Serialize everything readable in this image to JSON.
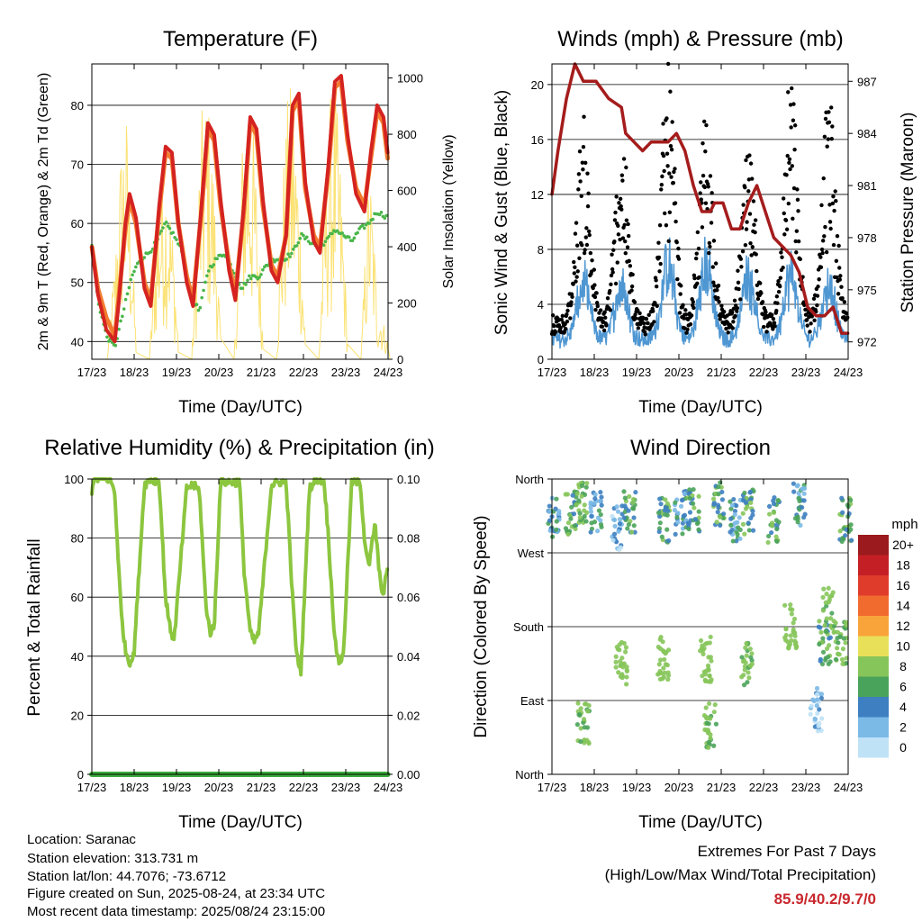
{
  "colors": {
    "temp_red": "#d42320",
    "temp_orange": "#f27c30",
    "dewpoint_green": "#4ab64a",
    "solar_yellow": "#fbe274",
    "wind_blue": "#4f97d2",
    "gust_black": "#000000",
    "pressure_maroon": "#a51c1c",
    "rh_green": "#8cc63f",
    "precip_green": "#3cab3c",
    "extremes_red": "#c8282d"
  },
  "chart_data": [
    {
      "id": "temperature",
      "type": "line",
      "title": "Temperature (F)",
      "xlabel": "Time (Day/UTC)",
      "ylabel": "2m & 9m T (Red, Orange) & 2m Td (Green)",
      "y2label": "Solar Insolation (Yellow)",
      "xlim": [
        17.958,
        24.958
      ],
      "ylim": [
        37,
        87
      ],
      "y2lim": [
        0,
        1050
      ],
      "yticks": [
        40,
        50,
        60,
        70,
        80
      ],
      "y2ticks": [
        0,
        200,
        400,
        600,
        800,
        1000
      ],
      "xtick_labels": [
        "17/23",
        "18/23",
        "19/23",
        "20/23",
        "21/23",
        "22/23",
        "23/23",
        "24/23"
      ],
      "grid": true,
      "series": [
        {
          "role": "temp_2m",
          "color_key": "temp_red",
          "x": [
            17.96,
            18.1,
            18.3,
            18.5,
            18.6,
            18.75,
            18.85,
            19.0,
            19.2,
            19.35,
            19.55,
            19.7,
            19.85,
            20.0,
            20.2,
            20.35,
            20.55,
            20.7,
            20.85,
            21.0,
            21.2,
            21.35,
            21.55,
            21.7,
            21.85,
            22.0,
            22.2,
            22.35,
            22.55,
            22.7,
            22.85,
            23.0,
            23.2,
            23.35,
            23.55,
            23.7,
            23.85,
            24.0,
            24.2,
            24.4,
            24.55,
            24.7,
            24.85,
            24.95
          ],
          "y": [
            56,
            48,
            42,
            40,
            47,
            60,
            65,
            61,
            49,
            46,
            63,
            73,
            72,
            60,
            50,
            46,
            63,
            77,
            75,
            64,
            52,
            47,
            63,
            78,
            76,
            64,
            52,
            50,
            58,
            80,
            82,
            67,
            57,
            55,
            70,
            84,
            85,
            75,
            65,
            62,
            72,
            80,
            78,
            72
          ]
        },
        {
          "role": "temp_9m",
          "color_key": "temp_orange",
          "x": [
            17.96,
            18.1,
            18.3,
            18.5,
            18.6,
            18.75,
            18.85,
            19.0,
            19.2,
            19.35,
            19.55,
            19.7,
            19.85,
            20.0,
            20.2,
            20.35,
            20.55,
            20.7,
            20.85,
            21.0,
            21.2,
            21.35,
            21.55,
            21.7,
            21.85,
            22.0,
            22.2,
            22.35,
            22.55,
            22.7,
            22.85,
            23.0,
            23.2,
            23.35,
            23.55,
            23.7,
            23.85,
            24.0,
            24.2,
            24.4,
            24.55,
            24.7,
            24.85,
            24.95
          ],
          "y": [
            56,
            49,
            44,
            41,
            48,
            59,
            64,
            60,
            50,
            47,
            62,
            72,
            71,
            60,
            51,
            47,
            62,
            76,
            74,
            63,
            53,
            48,
            62,
            77,
            75,
            63,
            53,
            51,
            58,
            79,
            81,
            66,
            58,
            56,
            69,
            83,
            84,
            74,
            66,
            63,
            71,
            79,
            77,
            71
          ]
        },
        {
          "role": "dewpoint_2m",
          "color_key": "dewpoint_green",
          "x": [
            17.96,
            18.1,
            18.3,
            18.5,
            18.7,
            18.9,
            19.1,
            19.3,
            19.5,
            19.7,
            19.9,
            20.1,
            20.3,
            20.5,
            20.7,
            20.9,
            21.1,
            21.3,
            21.5,
            21.7,
            21.9,
            22.1,
            22.3,
            22.5,
            22.7,
            22.9,
            23.1,
            23.3,
            23.5,
            23.7,
            23.9,
            24.1,
            24.3,
            24.5,
            24.7,
            24.95
          ],
          "y": [
            56,
            47,
            41,
            39,
            45,
            51,
            54,
            55,
            57,
            60,
            58,
            55,
            48,
            45,
            52,
            54,
            55,
            52,
            49,
            51,
            51,
            53,
            54,
            54,
            55,
            58,
            57,
            56,
            57,
            59,
            58,
            57,
            59,
            60,
            62,
            61
          ]
        },
        {
          "role": "solar",
          "color_key": "solar_yellow",
          "axis": "y2",
          "peaks_x": [
            18.5,
            18.77,
            19.5,
            19.8,
            20.5,
            20.76,
            21.5,
            21.77,
            22.5,
            22.78,
            23.5,
            23.77,
            24.5,
            24.7
          ],
          "peaks_y": [
            500,
            1000,
            700,
            720,
            1020,
            920,
            1040,
            930,
            1030,
            950,
            1020,
            950,
            950,
            200
          ]
        }
      ]
    },
    {
      "id": "winds",
      "type": "line",
      "title": "Winds (mph) & Pressure (mb)",
      "xlabel": "Time (Day/UTC)",
      "ylabel": "Sonic Wind & Gust (Blue, Black)",
      "y2label": "Station Pressure (Maroon)",
      "xlim": [
        17.958,
        24.958
      ],
      "ylim": [
        0,
        21.5
      ],
      "y2lim": [
        971,
        988
      ],
      "yticks": [
        0,
        4,
        8,
        12,
        16,
        20
      ],
      "y2ticks": [
        972,
        975,
        978,
        981,
        984,
        987
      ],
      "xtick_labels": [
        "17/23",
        "18/23",
        "19/23",
        "20/23",
        "21/23",
        "22/23",
        "23/23",
        "24/23"
      ],
      "grid": true,
      "series": [
        {
          "role": "wind",
          "color_key": "wind_blue",
          "pattern": "diurnal",
          "peak_x": [
            18.7,
            19.6,
            20.7,
            21.6,
            22.6,
            23.6,
            24.5
          ],
          "peak_y": [
            5.5,
            5.5,
            7.5,
            7.5,
            6.5,
            6.5,
            5.5
          ]
        },
        {
          "role": "gust",
          "color_key": "gust_black",
          "pattern": "diurnal",
          "peak_x": [
            18.7,
            19.6,
            20.7,
            21.6,
            22.6,
            23.6,
            24.5
          ],
          "peak_y": [
            15,
            14,
            19,
            16,
            13,
            18,
            17
          ]
        },
        {
          "role": "pressure",
          "color_key": "pressure_maroon",
          "axis": "y2",
          "x": [
            17.96,
            18.1,
            18.3,
            18.5,
            18.7,
            19.0,
            19.3,
            19.6,
            19.7,
            19.9,
            20.1,
            20.3,
            20.5,
            20.7,
            20.9,
            21.1,
            21.3,
            21.5,
            21.7,
            21.8,
            22.0,
            22.2,
            22.4,
            22.6,
            22.8,
            23.0,
            23.2,
            23.4,
            23.6,
            23.8,
            24.0,
            24.2,
            24.4,
            24.6,
            24.8,
            24.95
          ],
          "y": [
            980.5,
            983,
            986,
            988,
            987,
            987,
            986,
            985.5,
            984,
            983.5,
            983,
            983.5,
            983.5,
            983.5,
            984,
            983,
            981,
            979.5,
            979.5,
            980,
            980,
            978.5,
            978.5,
            980,
            981,
            979.5,
            978,
            977.5,
            977,
            976,
            974,
            973.5,
            973.5,
            974,
            972.5,
            972.5
          ]
        }
      ]
    },
    {
      "id": "humidity",
      "type": "line",
      "title": "Relative Humidity (%) & Precipitation (in)",
      "xlabel": "Time (Day/UTC)",
      "ylabel": "Percent & Total Rainfall",
      "xlim": [
        17.958,
        24.958
      ],
      "ylim": [
        0,
        100
      ],
      "y2lim": [
        0,
        0.1
      ],
      "yticks": [
        0,
        20,
        40,
        60,
        80,
        100
      ],
      "y2ticks": [
        "0.00",
        "0.02",
        "0.04",
        "0.06",
        "0.08",
        "0.10"
      ],
      "xtick_labels": [
        "17/23",
        "18/23",
        "19/23",
        "20/23",
        "21/23",
        "22/23",
        "23/23",
        "24/23"
      ],
      "grid": true,
      "series": [
        {
          "role": "rh",
          "color_key": "rh_green",
          "x": [
            17.96,
            18.0,
            18.05,
            18.4,
            18.5,
            18.65,
            18.75,
            18.85,
            18.95,
            19.2,
            19.35,
            19.55,
            19.7,
            19.8,
            19.9,
            20.2,
            20.35,
            20.5,
            20.65,
            20.75,
            20.85,
            21.0,
            21.3,
            21.45,
            21.55,
            21.7,
            21.8,
            21.9,
            22.2,
            22.4,
            22.55,
            22.7,
            22.8,
            22.9,
            23.1,
            23.3,
            23.45,
            23.55,
            23.7,
            23.8,
            23.9,
            24.1,
            24.3,
            24.4,
            24.5,
            24.65,
            24.75,
            24.85,
            24.95
          ],
          "y": [
            96,
            100,
            100,
            100,
            95,
            55,
            42,
            38,
            40,
            98,
            100,
            99,
            60,
            50,
            45,
            97,
            98,
            96,
            58,
            48,
            50,
            99,
            99,
            99,
            70,
            48,
            45,
            48,
            98,
            99,
            99,
            60,
            40,
            35,
            97,
            100,
            99,
            80,
            45,
            38,
            40,
            99,
            99,
            80,
            70,
            85,
            68,
            60,
            72
          ]
        },
        {
          "role": "precip",
          "color_key": "precip_green",
          "axis": "y2",
          "x": [
            17.96,
            24.95
          ],
          "y": [
            0,
            0
          ]
        }
      ]
    },
    {
      "id": "direction",
      "type": "scatter",
      "title": "Wind Direction",
      "xlabel": "Time (Day/UTC)",
      "ylabel": "Direction (Colored By Speed)",
      "xlim": [
        17.958,
        24.958
      ],
      "ylim": [
        0,
        360
      ],
      "ytick_labels": [
        "North",
        "East",
        "South",
        "West",
        "North"
      ],
      "xtick_labels": [
        "17/23",
        "18/23",
        "19/23",
        "20/23",
        "21/23",
        "22/23",
        "23/23",
        "24/23"
      ],
      "grid": true,
      "clusters": [
        {
          "x": 18.0,
          "y": 315,
          "speed": 2
        },
        {
          "x": 18.4,
          "y": 320,
          "speed": 3
        },
        {
          "x": 18.65,
          "y": 330,
          "speed": 4
        },
        {
          "x": 18.7,
          "y": 60,
          "speed": 4
        },
        {
          "x": 19.0,
          "y": 320,
          "speed": 2
        },
        {
          "x": 19.5,
          "y": 300,
          "speed": 1
        },
        {
          "x": 19.6,
          "y": 135,
          "speed": 5
        },
        {
          "x": 19.8,
          "y": 320,
          "speed": 3
        },
        {
          "x": 20.6,
          "y": 140,
          "speed": 6
        },
        {
          "x": 20.6,
          "y": 310,
          "speed": 3
        },
        {
          "x": 21.0,
          "y": 320,
          "speed": 2
        },
        {
          "x": 21.3,
          "y": 320,
          "speed": 3
        },
        {
          "x": 21.6,
          "y": 140,
          "speed": 6
        },
        {
          "x": 21.7,
          "y": 60,
          "speed": 4
        },
        {
          "x": 21.9,
          "y": 330,
          "speed": 3
        },
        {
          "x": 22.3,
          "y": 310,
          "speed": 2
        },
        {
          "x": 22.55,
          "y": 135,
          "speed": 4
        },
        {
          "x": 22.6,
          "y": 320,
          "speed": 3
        },
        {
          "x": 23.2,
          "y": 310,
          "speed": 3
        },
        {
          "x": 23.6,
          "y": 180,
          "speed": 5
        },
        {
          "x": 23.8,
          "y": 330,
          "speed": 2
        },
        {
          "x": 24.2,
          "y": 80,
          "speed": 1
        },
        {
          "x": 24.4,
          "y": 160,
          "speed": 3
        },
        {
          "x": 24.5,
          "y": 200,
          "speed": 4
        },
        {
          "x": 24.8,
          "y": 160,
          "speed": 4
        },
        {
          "x": 24.9,
          "y": 310,
          "speed": 3
        }
      ],
      "colorbar": {
        "title": "mph",
        "labels": [
          "20+",
          "18",
          "16",
          "14",
          "12",
          "10",
          "8",
          "6",
          "4",
          "2",
          "0"
        ],
        "colors": [
          "#9a1a1d",
          "#c51f26",
          "#e03c2c",
          "#f26b2e",
          "#f9a43a",
          "#e9e05a",
          "#86c55a",
          "#4aa35a",
          "#3d7fc0",
          "#7bb9e6",
          "#bfe2f6"
        ]
      }
    }
  ],
  "footer": {
    "location": "Location: Saranac",
    "elevation": "Station elevation: 313.731 m",
    "latlon": "Station lat/lon: 44.7076; -73.6712",
    "created": "Figure created on Sun, 2025-08-24, at 23:34 UTC",
    "recent": "Most recent data timestamp: 2025/08/24 23:15:00"
  },
  "extremes": {
    "line1": "Extremes For Past 7 Days",
    "line2": "(High/Low/Max Wind/Total Precipitation)",
    "values": "85.9/40.2/9.7/0"
  }
}
